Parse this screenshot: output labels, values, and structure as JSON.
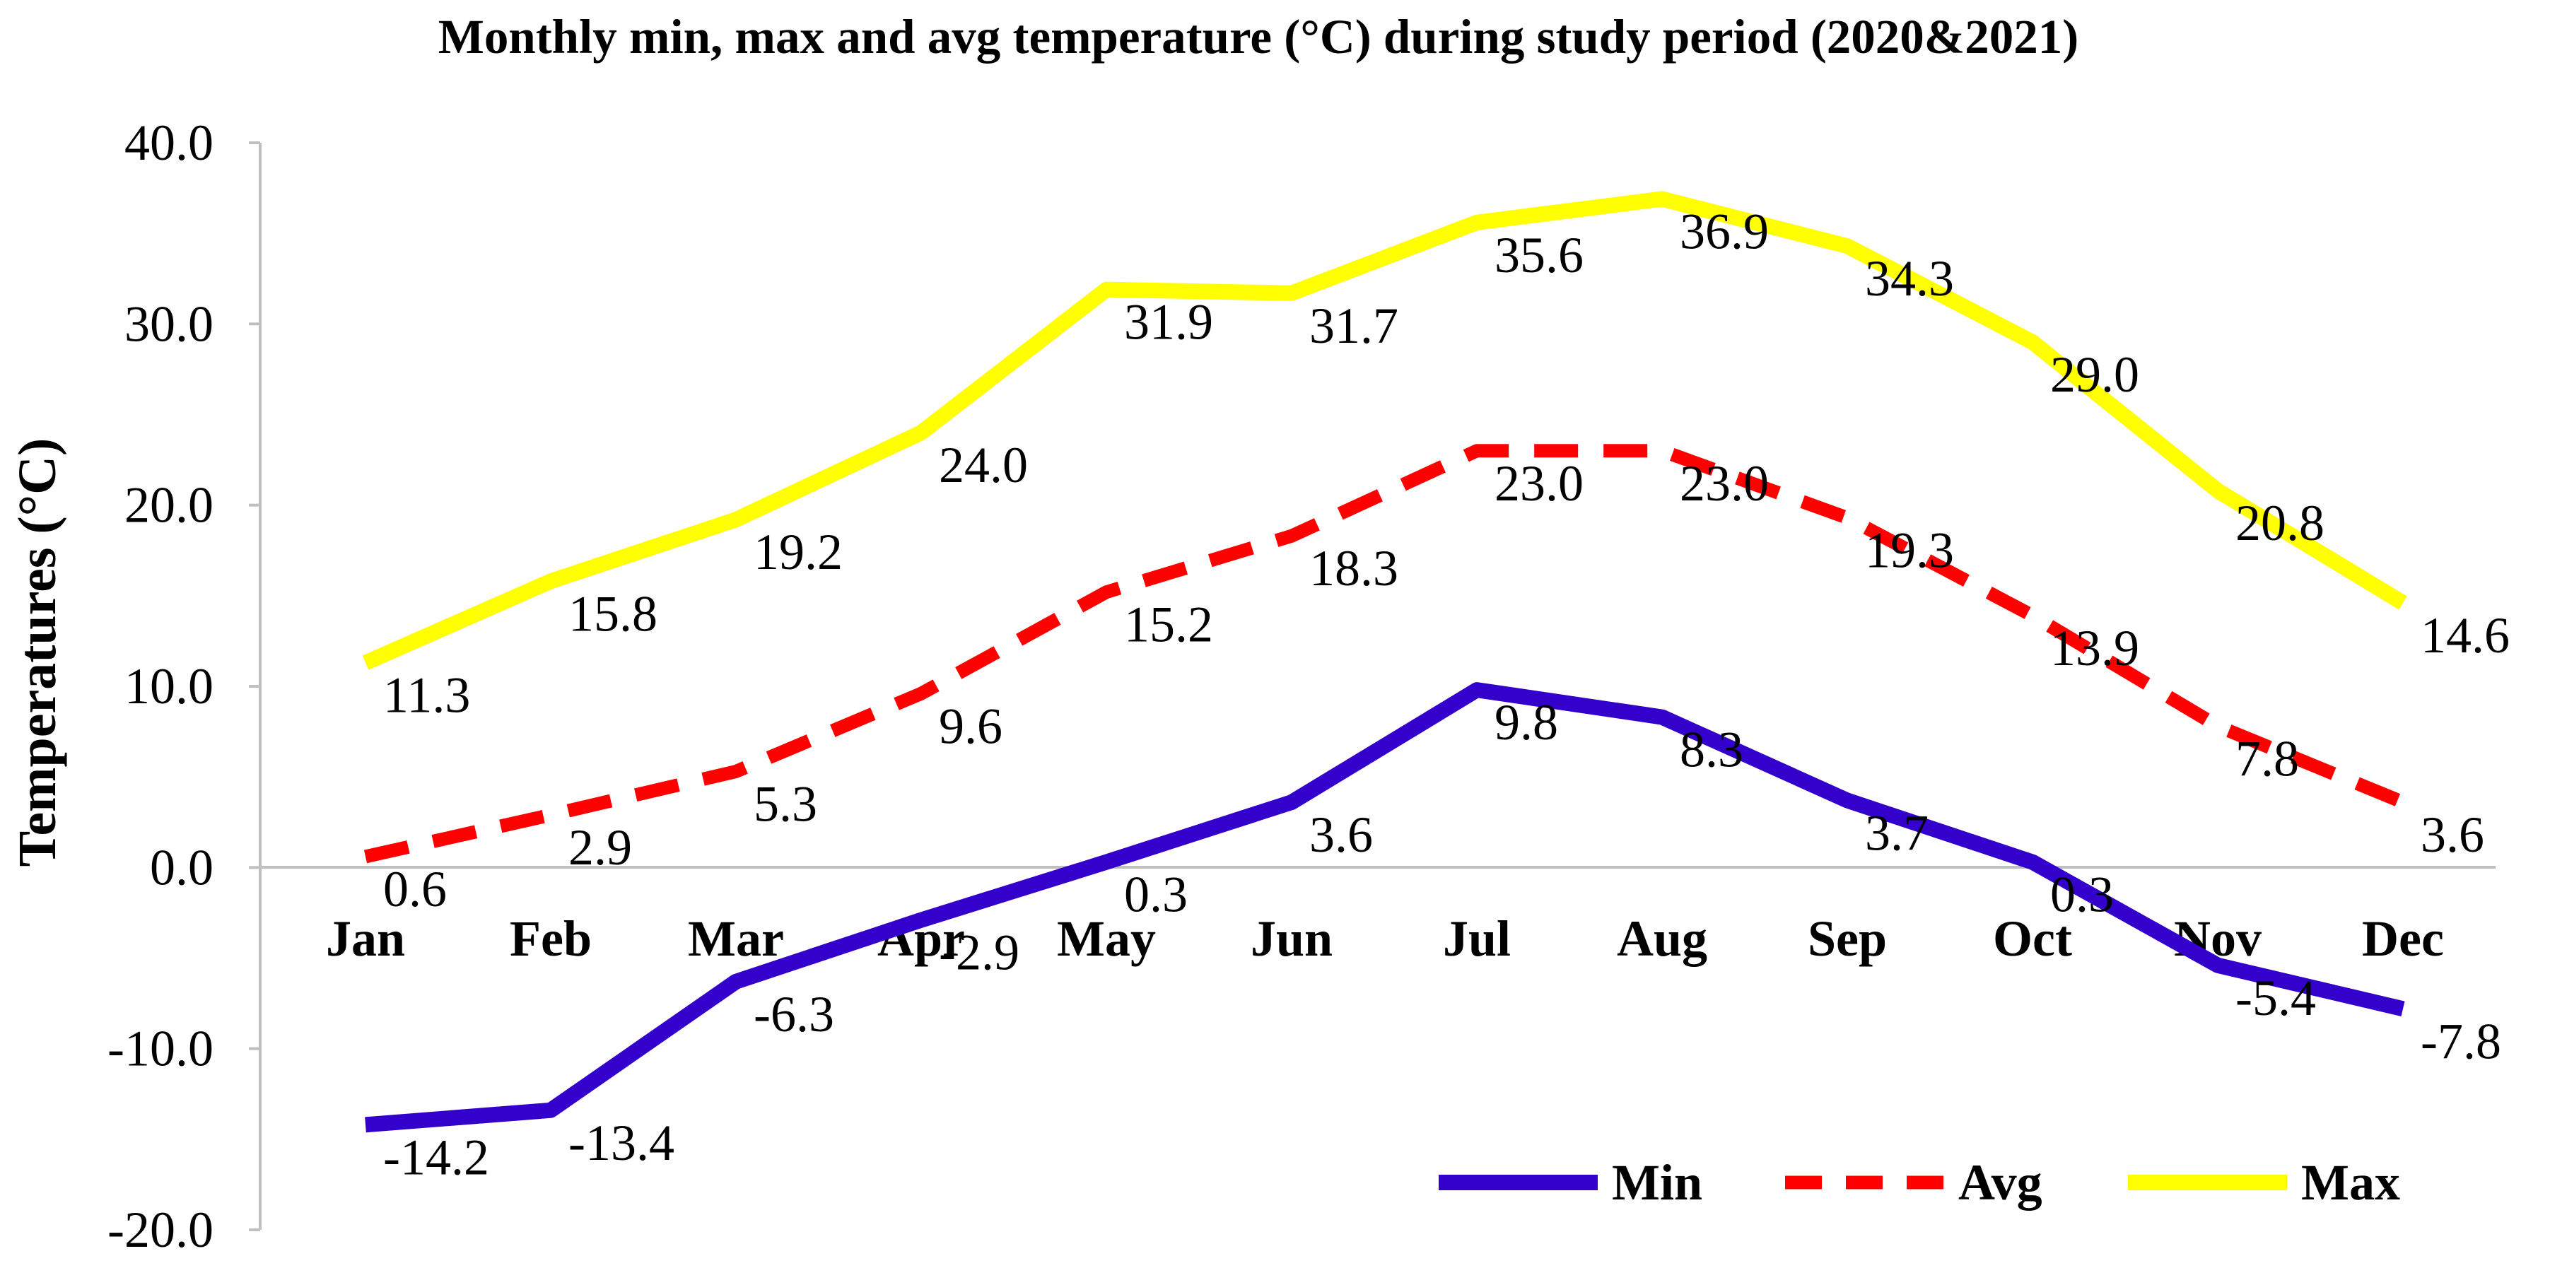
{
  "chart_data": {
    "type": "line",
    "title": "Monthly  min, max and avg temperature (°C) during study period (2020&2021)",
    "xlabel": "",
    "ylabel": "Temperatures (°C)",
    "categories": [
      "Jan",
      "Feb",
      "Mar",
      "Apr",
      "May",
      "Jun",
      "Jul",
      "Aug",
      "Sep",
      "Oct",
      "Nov",
      "Dec"
    ],
    "ylim": [
      -20,
      40
    ],
    "yticks": [
      "40.0",
      "30.0",
      "20.0",
      "10.0",
      "0.0",
      "-10.0",
      "-20.0"
    ],
    "grid": false,
    "legend_position": "bottom-right",
    "series": [
      {
        "name": "Min",
        "color": "#3300CC",
        "style": "solid",
        "values": [
          -14.2,
          -13.4,
          -6.3,
          -2.9,
          0.3,
          3.6,
          9.8,
          8.3,
          3.7,
          0.3,
          -5.4,
          -7.8
        ],
        "labels": [
          "-14.2",
          "-13.4",
          "-6.3",
          "-2.9",
          "0.3",
          "3.6",
          "9.8",
          "8.3",
          "3.7",
          "0.3",
          "-5.4",
          "-7.8"
        ]
      },
      {
        "name": "Avg",
        "color": "#FF0000",
        "style": "dashed",
        "values": [
          0.6,
          2.9,
          5.3,
          9.6,
          15.2,
          18.3,
          23.0,
          23.0,
          19.3,
          13.9,
          7.8,
          3.6
        ],
        "labels": [
          "0.6",
          "2.9",
          "5.3",
          "9.6",
          "15.2",
          "18.3",
          "23.0",
          "23.0",
          "19.3",
          "13.9",
          "7.8",
          "3.6"
        ]
      },
      {
        "name": "Max",
        "color": "#FFFF00",
        "style": "solid",
        "values": [
          11.3,
          15.8,
          19.2,
          24.0,
          31.9,
          31.7,
          35.6,
          36.9,
          34.3,
          29.0,
          20.8,
          14.6
        ],
        "labels": [
          "11.3",
          "15.8",
          "19.2",
          "24.0",
          "31.9",
          "31.7",
          "35.6",
          "36.9",
          "34.3",
          "29.0",
          "20.8",
          "14.6"
        ]
      }
    ]
  }
}
